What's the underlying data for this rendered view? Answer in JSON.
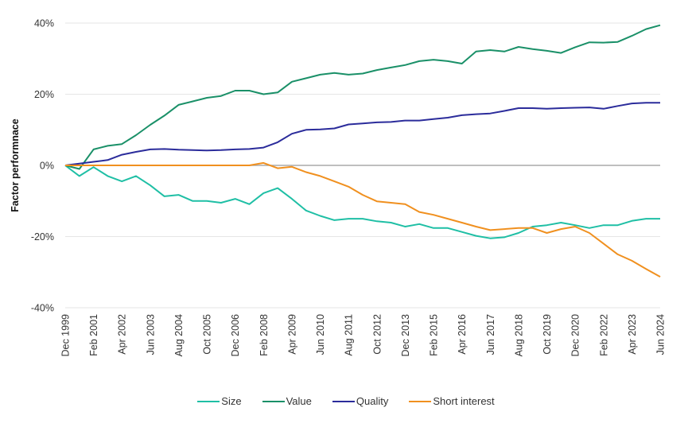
{
  "chart_data": {
    "type": "line",
    "title": "",
    "xlabel": "",
    "ylabel": "Factor performnace",
    "ylim": [
      -40,
      40
    ],
    "yticks": [
      40,
      20,
      0,
      -20,
      -40
    ],
    "ytick_labels": [
      "40%",
      "20%",
      "0%",
      "-20%",
      "-40%"
    ],
    "grid": true,
    "legend_position": "bottom",
    "xtick_labels": [
      "Dec 1999",
      "Feb 2001",
      "Apr 2002",
      "Jun 2003",
      "Aug 2004",
      "Oct 2005",
      "Dec 2006",
      "Feb 2008",
      "Apr 2009",
      "Jun 2010",
      "Aug 2011",
      "Oct 2012",
      "Dec 2013",
      "Feb 2015",
      "Apr 2016",
      "Jun 2017",
      "Aug 2018",
      "Oct 2019",
      "Dec 2020",
      "Feb 2022",
      "Apr 2023",
      "Jun 2024"
    ],
    "x": [
      "Dec 1999",
      "Jul 2000",
      "Feb 2001",
      "Sep 2001",
      "Apr 2002",
      "Nov 2002",
      "Jun 2003",
      "Jan 2004",
      "Aug 2004",
      "Mar 2005",
      "Oct 2005",
      "May 2006",
      "Dec 2006",
      "Jul 2007",
      "Feb 2008",
      "Sep 2008",
      "Apr 2009",
      "Nov 2009",
      "Jun 2010",
      "Jan 2011",
      "Aug 2011",
      "Mar 2012",
      "Oct 2012",
      "May 2013",
      "Dec 2013",
      "Jul 2014",
      "Feb 2015",
      "Sep 2015",
      "Apr 2016",
      "Nov 2016",
      "Jun 2017",
      "Jan 2018",
      "Aug 2018",
      "Mar 2019",
      "Oct 2019",
      "May 2020",
      "Dec 2020",
      "Jul 2021",
      "Feb 2022",
      "Sep 2022",
      "Apr 2023",
      "Nov 2023",
      "Jun 2024"
    ],
    "series": [
      {
        "name": "Size",
        "color": "#1fbfa5",
        "values": [
          0,
          -3,
          -0.5,
          -3,
          -4.5,
          -3,
          -5.6,
          -8.7,
          -8.3,
          -10,
          -10,
          -10.5,
          -9.4,
          -10.9,
          -7.8,
          -6.4,
          -9.4,
          -12.7,
          -14.2,
          -15.4,
          -15,
          -15,
          -15.7,
          -16.1,
          -17.2,
          -16.5,
          -17.6,
          -17.6,
          -18.7,
          -19.8,
          -20.5,
          -20.2,
          -19,
          -17.2,
          -16.8,
          -16.1,
          -16.8,
          -17.6,
          -16.8,
          -16.8,
          -15.6,
          -15,
          -15
        ]
      },
      {
        "name": "Value",
        "color": "#1a9068",
        "values": [
          0,
          -1,
          4.5,
          5.5,
          6,
          8.5,
          11.4,
          14,
          17,
          18,
          19,
          19.5,
          21,
          21,
          20,
          20.5,
          23.5,
          24.5,
          25.5,
          26,
          25.5,
          25.8,
          26.8,
          27.5,
          28.2,
          29.3,
          29.7,
          29.3,
          28.6,
          32,
          32.4,
          32,
          33.3,
          32.7,
          32.2,
          31.6,
          33.2,
          34.6,
          34.5,
          34.7,
          36.4,
          38.3,
          39.4
        ]
      },
      {
        "name": "Quality",
        "color": "#2b2c9b",
        "values": [
          0,
          0.5,
          1,
          1.5,
          3,
          3.8,
          4.5,
          4.6,
          4.4,
          4.3,
          4.2,
          4.3,
          4.5,
          4.6,
          5,
          6.5,
          8.9,
          10,
          10.1,
          10.4,
          11.5,
          11.8,
          12.1,
          12.2,
          12.6,
          12.6,
          13,
          13.4,
          14.1,
          14.4,
          14.6,
          15.3,
          16.1,
          16.1,
          15.9,
          16.1,
          16.2,
          16.3,
          15.9,
          16.7,
          17.4,
          17.6,
          17.6
        ]
      },
      {
        "name": "Short interest",
        "color": "#f0901f",
        "values": [
          0,
          0,
          0,
          0,
          0,
          0,
          0,
          0,
          0,
          0,
          0,
          0,
          0,
          0,
          0.7,
          -0.8,
          -0.4,
          -1.9,
          -3,
          -4.5,
          -6,
          -8.3,
          -10.1,
          -10.5,
          -10.9,
          -13.1,
          -13.9,
          -15,
          -16.1,
          -17.2,
          -18.2,
          -17.9,
          -17.6,
          -17.6,
          -19,
          -17.9,
          -17.2,
          -19,
          -22,
          -25,
          -26.8,
          -29.1,
          -31.3
        ]
      }
    ]
  },
  "colors": {
    "grid": "#e6e6e6",
    "zero_line": "#aaaaaa"
  }
}
